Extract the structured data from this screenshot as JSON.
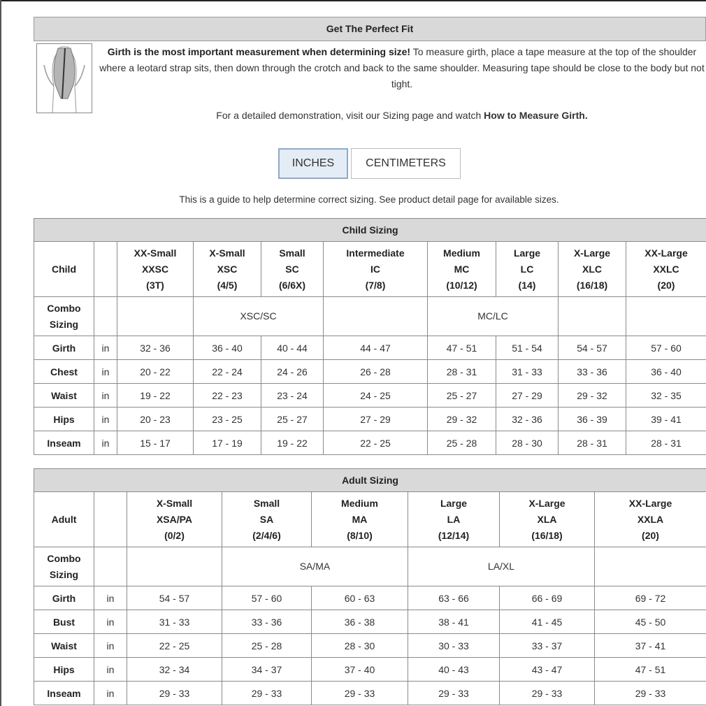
{
  "header": {
    "title": "Get The Perfect Fit"
  },
  "intro": {
    "bold": "Girth is the most important measurement when determining size!",
    "text": "To measure girth, place a tape measure at the top of the shoulder where a leotard strap sits, then down through the crotch and back to the same shoulder. Measuring tape should be close to the body but not tight.",
    "demo_text": "For a detailed demonstration, visit our Sizing page and watch",
    "demo_link": "How to Measure Girth."
  },
  "units": {
    "inches": "INCHES",
    "centimeters": "CENTIMETERS"
  },
  "guide": "This is a guide to help determine correct sizing. See product detail page for available sizes.",
  "child": {
    "title": "Child Sizing",
    "corner": "Child",
    "sizes": [
      [
        "XX-Small",
        "XXSC",
        "(3T)"
      ],
      [
        "X-Small",
        "XSC",
        "(4/5)"
      ],
      [
        "Small",
        "SC",
        "(6/6X)"
      ],
      [
        "Intermediate",
        "IC",
        "(7/8)"
      ],
      [
        "Medium",
        "MC",
        "(10/12)"
      ],
      [
        "Large",
        "LC",
        "(14)"
      ],
      [
        "X-Large",
        "XLC",
        "(16/18)"
      ],
      [
        "XX-Large",
        "XXLC",
        "(20)"
      ]
    ],
    "combo_label": "Combo Sizing",
    "combos": [
      "XSC/SC",
      "MC/LC"
    ],
    "rows": [
      {
        "label": "Girth",
        "unit": "in",
        "values": [
          "32 - 36",
          "36 - 40",
          "40 - 44",
          "44 - 47",
          "47 - 51",
          "51 - 54",
          "54 - 57",
          "57 - 60"
        ]
      },
      {
        "label": "Chest",
        "unit": "in",
        "values": [
          "20 - 22",
          "22 - 24",
          "24 - 26",
          "26 - 28",
          "28 - 31",
          "31 - 33",
          "33 - 36",
          "36 - 40"
        ]
      },
      {
        "label": "Waist",
        "unit": "in",
        "values": [
          "19 - 22",
          "22 - 23",
          "23 - 24",
          "24 - 25",
          "25 - 27",
          "27 - 29",
          "29 - 32",
          "32 - 35"
        ]
      },
      {
        "label": "Hips",
        "unit": "in",
        "values": [
          "20 - 23",
          "23 - 25",
          "25 - 27",
          "27 - 29",
          "29 - 32",
          "32 - 36",
          "36 - 39",
          "39 - 41"
        ]
      },
      {
        "label": "Inseam",
        "unit": "in",
        "values": [
          "15 - 17",
          "17 - 19",
          "19 - 22",
          "22 - 25",
          "25 - 28",
          "28 - 30",
          "28 - 31",
          "28 - 31"
        ]
      }
    ]
  },
  "adult": {
    "title": "Adult Sizing",
    "corner": "Adult",
    "sizes": [
      [
        "X-Small",
        "XSA/PA",
        "(0/2)"
      ],
      [
        "Small",
        "SA",
        "(2/4/6)"
      ],
      [
        "Medium",
        "MA",
        "(8/10)"
      ],
      [
        "Large",
        "LA",
        "(12/14)"
      ],
      [
        "X-Large",
        "XLA",
        "(16/18)"
      ],
      [
        "XX-Large",
        "XXLA",
        "(20)"
      ]
    ],
    "combo_label": "Combo Sizing",
    "combos": [
      "SA/MA",
      "LA/XL"
    ],
    "rows": [
      {
        "label": "Girth",
        "unit": "in",
        "values": [
          "54 - 57",
          "57 - 60",
          "60 - 63",
          "63 - 66",
          "66 - 69",
          "69 - 72"
        ]
      },
      {
        "label": "Bust",
        "unit": "in",
        "values": [
          "31 - 33",
          "33 - 36",
          "36 - 38",
          "38 - 41",
          "41 - 45",
          "45 - 50"
        ]
      },
      {
        "label": "Waist",
        "unit": "in",
        "values": [
          "22 - 25",
          "25 - 28",
          "28 - 30",
          "30 - 33",
          "33 - 37",
          "37 - 41"
        ]
      },
      {
        "label": "Hips",
        "unit": "in",
        "values": [
          "32 - 34",
          "34 - 37",
          "37 - 40",
          "40 - 43",
          "43 - 47",
          "47 - 51"
        ]
      },
      {
        "label": "Inseam",
        "unit": "in",
        "values": [
          "29 - 33",
          "29 - 33",
          "29 - 33",
          "29 - 33",
          "29 - 33",
          "29 - 33"
        ]
      }
    ]
  }
}
